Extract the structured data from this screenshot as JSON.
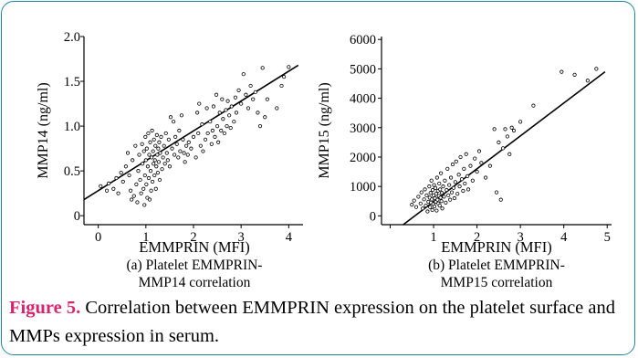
{
  "chart_data": [
    {
      "type": "scatter",
      "title": "",
      "xlabel": "EMMPRIN (MFI)",
      "ylabel": "MMP14 (ng/ml)",
      "subcaption_line1": "(a) Platelet EMMPRIN-",
      "subcaption_line2": "MMP14 correlation",
      "xlim": [
        -0.3,
        4.3
      ],
      "ylim": [
        -0.1,
        2.0
      ],
      "xticks": [
        0,
        1,
        2,
        3,
        4
      ],
      "xtick_labels": [
        "0",
        "1",
        "2",
        "3",
        "4"
      ],
      "yticks": [
        0,
        0.5,
        1.0,
        1.5,
        2.0
      ],
      "ytick_labels": [
        "0",
        "0.5",
        "1.0",
        "1.5",
        "2.0"
      ],
      "fit_line": {
        "x": [
          -0.3,
          4.2
        ],
        "y": [
          0.18,
          1.68
        ]
      },
      "points": [
        [
          0.05,
          0.33
        ],
        [
          0.18,
          0.28
        ],
        [
          0.22,
          0.36
        ],
        [
          0.32,
          0.3
        ],
        [
          0.38,
          0.42
        ],
        [
          0.42,
          0.25
        ],
        [
          0.48,
          0.48
        ],
        [
          0.52,
          0.38
        ],
        [
          0.58,
          0.55
        ],
        [
          0.62,
          0.7
        ],
        [
          0.65,
          0.45
        ],
        [
          0.68,
          0.28
        ],
        [
          0.7,
          0.18
        ],
        [
          0.72,
          0.62
        ],
        [
          0.75,
          0.22
        ],
        [
          0.78,
          0.78
        ],
        [
          0.8,
          0.35
        ],
        [
          0.82,
          0.15
        ],
        [
          0.84,
          0.5
        ],
        [
          0.86,
          0.68
        ],
        [
          0.88,
          0.4
        ],
        [
          0.9,
          0.25
        ],
        [
          0.92,
          0.8
        ],
        [
          0.93,
          0.58
        ],
        [
          0.95,
          0.3
        ],
        [
          0.96,
          0.72
        ],
        [
          0.97,
          0.12
        ],
        [
          0.98,
          0.45
        ],
        [
          0.99,
          0.88
        ],
        [
          1.0,
          0.62
        ],
        [
          1.01,
          0.35
        ],
        [
          1.02,
          0.75
        ],
        [
          1.03,
          0.2
        ],
        [
          1.04,
          0.55
        ],
        [
          1.05,
          0.92
        ],
        [
          1.06,
          0.42
        ],
        [
          1.07,
          0.68
        ],
        [
          1.08,
          0.18
        ],
        [
          1.09,
          0.82
        ],
        [
          1.1,
          0.5
        ],
        [
          1.11,
          0.28
        ],
        [
          1.12,
          0.65
        ],
        [
          1.13,
          0.95
        ],
        [
          1.14,
          0.38
        ],
        [
          1.15,
          0.72
        ],
        [
          1.16,
          0.58
        ],
        [
          1.17,
          0.85
        ],
        [
          1.18,
          0.45
        ],
        [
          1.19,
          0.62
        ],
        [
          1.2,
          0.78
        ],
        [
          1.21,
          0.3
        ],
        [
          1.22,
          0.55
        ],
        [
          1.23,
          0.9
        ],
        [
          1.24,
          0.68
        ],
        [
          1.25,
          0.48
        ],
        [
          1.26,
          0.75
        ],
        [
          1.27,
          0.6
        ],
        [
          1.28,
          0.82
        ],
        [
          1.29,
          0.4
        ],
        [
          1.3,
          0.7
        ],
        [
          1.32,
          0.88
        ],
        [
          1.34,
          0.52
        ],
        [
          1.36,
          0.65
        ],
        [
          1.38,
          0.78
        ],
        [
          1.4,
          0.58
        ],
        [
          1.42,
          0.92
        ],
        [
          1.44,
          0.7
        ],
        [
          1.46,
          0.62
        ],
        [
          1.48,
          0.85
        ],
        [
          1.5,
          0.55
        ],
        [
          1.52,
          1.1
        ],
        [
          1.55,
          0.75
        ],
        [
          1.58,
          1.05
        ],
        [
          1.6,
          0.68
        ],
        [
          1.62,
          0.88
        ],
        [
          1.65,
          0.8
        ],
        [
          1.68,
          0.65
        ],
        [
          1.7,
          0.95
        ],
        [
          1.72,
          0.72
        ],
        [
          1.75,
          1.12
        ],
        [
          1.78,
          0.85
        ],
        [
          1.8,
          0.7
        ],
        [
          1.82,
          0.6
        ],
        [
          1.85,
          0.78
        ],
        [
          1.88,
          0.68
        ],
        [
          1.9,
          0.82
        ],
        [
          1.95,
          0.75
        ],
        [
          2.0,
          0.88
        ],
        [
          2.05,
          0.65
        ],
        [
          2.08,
          1.15
        ],
        [
          2.1,
          0.92
        ],
        [
          2.12,
          1.25
        ],
        [
          2.15,
          0.78
        ],
        [
          2.18,
          1.02
        ],
        [
          2.2,
          0.72
        ],
        [
          2.25,
          0.85
        ],
        [
          2.28,
          1.2
        ],
        [
          2.3,
          0.92
        ],
        [
          2.35,
          1.05
        ],
        [
          2.38,
          0.8
        ],
        [
          2.4,
          0.95
        ],
        [
          2.42,
          1.22
        ],
        [
          2.45,
          0.88
        ],
        [
          2.48,
          1.35
        ],
        [
          2.5,
          1.0
        ],
        [
          2.52,
          0.82
        ],
        [
          2.55,
          1.15
        ],
        [
          2.58,
          0.95
        ],
        [
          2.6,
          1.3
        ],
        [
          2.62,
          1.08
        ],
        [
          2.65,
          0.92
        ],
        [
          2.68,
          1.18
        ],
        [
          2.7,
          1.0
        ],
        [
          2.72,
          1.28
        ],
        [
          2.75,
          1.12
        ],
        [
          2.78,
          0.98
        ],
        [
          2.8,
          1.22
        ],
        [
          2.85,
          1.05
        ],
        [
          2.88,
          1.32
        ],
        [
          2.9,
          1.15
        ],
        [
          2.95,
          1.4
        ],
        [
          3.0,
          1.25
        ],
        [
          3.05,
          1.58
        ],
        [
          3.1,
          1.35
        ],
        [
          3.15,
          1.2
        ],
        [
          3.2,
          1.45
        ],
        [
          3.25,
          1.3
        ],
        [
          3.3,
          1.38
        ],
        [
          3.35,
          1.15
        ],
        [
          3.4,
          1.0
        ],
        [
          3.45,
          1.65
        ],
        [
          3.5,
          1.1
        ],
        [
          3.55,
          1.3
        ],
        [
          3.75,
          1.2
        ],
        [
          3.85,
          1.45
        ],
        [
          3.9,
          1.55
        ],
        [
          4.0,
          1.66
        ]
      ]
    },
    {
      "type": "scatter",
      "title": "",
      "xlabel": "EMMPRIN (MFI)",
      "ylabel": "MMP15 (ng/ml)",
      "subcaption_line1": "(b) Platelet EMMPRIN-",
      "subcaption_line2": "MMP15 correlation",
      "xlim": [
        -0.2,
        5.1
      ],
      "ylim": [
        -300,
        6100
      ],
      "xticks": [
        0,
        1,
        2,
        3,
        4,
        5
      ],
      "xtick_labels": [
        "",
        "1",
        "2",
        "3",
        "4",
        "5"
      ],
      "yticks": [
        0,
        1000,
        2000,
        3000,
        4000,
        5000,
        6000
      ],
      "ytick_labels": [
        "0",
        "1000",
        "2000",
        "3000",
        "4000",
        "5000",
        "6000"
      ],
      "fit_line": {
        "x": [
          0.3,
          4.95
        ],
        "y": [
          -300,
          4900
        ]
      },
      "points": [
        [
          0.5,
          380
        ],
        [
          0.55,
          520
        ],
        [
          0.6,
          300
        ],
        [
          0.65,
          650
        ],
        [
          0.7,
          420
        ],
        [
          0.72,
          800
        ],
        [
          0.75,
          250
        ],
        [
          0.78,
          560
        ],
        [
          0.8,
          900
        ],
        [
          0.82,
          350
        ],
        [
          0.84,
          700
        ],
        [
          0.86,
          150
        ],
        [
          0.88,
          480
        ],
        [
          0.9,
          1000
        ],
        [
          0.91,
          620
        ],
        [
          0.92,
          300
        ],
        [
          0.93,
          780
        ],
        [
          0.94,
          450
        ],
        [
          0.95,
          1200
        ],
        [
          0.96,
          560
        ],
        [
          0.97,
          200
        ],
        [
          0.98,
          880
        ],
        [
          0.99,
          400
        ],
        [
          1.0,
          700
        ],
        [
          1.01,
          1050
        ],
        [
          1.02,
          320
        ],
        [
          1.03,
          600
        ],
        [
          1.04,
          950
        ],
        [
          1.05,
          480
        ],
        [
          1.06,
          750
        ],
        [
          1.07,
          180
        ],
        [
          1.08,
          1300
        ],
        [
          1.09,
          550
        ],
        [
          1.1,
          850
        ],
        [
          1.11,
          420
        ],
        [
          1.12,
          680
        ],
        [
          1.13,
          1100
        ],
        [
          1.14,
          350
        ],
        [
          1.15,
          900
        ],
        [
          1.16,
          620
        ],
        [
          1.17,
          1450
        ],
        [
          1.18,
          500
        ],
        [
          1.19,
          780
        ],
        [
          1.2,
          250
        ],
        [
          1.22,
          1000
        ],
        [
          1.24,
          650
        ],
        [
          1.26,
          1200
        ],
        [
          1.28,
          450
        ],
        [
          1.3,
          880
        ],
        [
          1.32,
          1600
        ],
        [
          1.34,
          700
        ],
        [
          1.36,
          1050
        ],
        [
          1.38,
          550
        ],
        [
          1.4,
          1300
        ],
        [
          1.42,
          800
        ],
        [
          1.44,
          1750
        ],
        [
          1.46,
          950
        ],
        [
          1.48,
          600
        ],
        [
          1.5,
          1150
        ],
        [
          1.52,
          1850
        ],
        [
          1.55,
          750
        ],
        [
          1.58,
          1400
        ],
        [
          1.6,
          1000
        ],
        [
          1.62,
          2000
        ],
        [
          1.65,
          1250
        ],
        [
          1.68,
          850
        ],
        [
          1.7,
          1600
        ],
        [
          1.72,
          1100
        ],
        [
          1.75,
          2100
        ],
        [
          1.78,
          1350
        ],
        [
          1.8,
          900
        ],
        [
          1.85,
          1700
        ],
        [
          1.9,
          1200
        ],
        [
          1.95,
          1950
        ],
        [
          2.0,
          1500
        ],
        [
          2.05,
          2200
        ],
        [
          2.1,
          1800
        ],
        [
          2.2,
          1300
        ],
        [
          2.3,
          1700
        ],
        [
          2.4,
          2950
        ],
        [
          2.45,
          800
        ],
        [
          2.5,
          2500
        ],
        [
          2.55,
          550
        ],
        [
          2.6,
          2300
        ],
        [
          2.65,
          2950
        ],
        [
          2.7,
          2700
        ],
        [
          2.75,
          2100
        ],
        [
          2.8,
          3000
        ],
        [
          2.85,
          2900
        ],
        [
          3.0,
          3200
        ],
        [
          3.3,
          3750
        ],
        [
          3.95,
          4900
        ],
        [
          4.25,
          4800
        ],
        [
          4.55,
          4600
        ],
        [
          4.75,
          5000
        ]
      ]
    }
  ],
  "caption": {
    "label": "Figure 5.",
    "text": " Correlation between EMMPRIN expression on the platelet surface and MMPs expression in serum."
  }
}
